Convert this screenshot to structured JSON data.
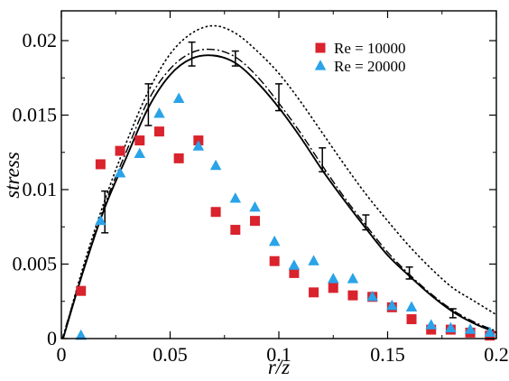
{
  "chart_data": {
    "type": "scatter",
    "xlabel": "r/z",
    "ylabel": "stress",
    "xlim": [
      0,
      0.2
    ],
    "ylim": [
      0,
      0.022
    ],
    "xticks": [
      "0",
      "0.05",
      "0.1",
      "0.15",
      "0.2"
    ],
    "yticks": [
      "0",
      "0.005",
      "0.01",
      "0.015",
      "0.02"
    ],
    "grid": false,
    "legend_position": "top-right",
    "series": [
      {
        "name": "Re = 10000",
        "marker": "square",
        "color": "#d9232d",
        "points": [
          [
            0.009,
            0.0032
          ],
          [
            0.018,
            0.0117
          ],
          [
            0.027,
            0.0126
          ],
          [
            0.036,
            0.0133
          ],
          [
            0.045,
            0.0139
          ],
          [
            0.054,
            0.0121
          ],
          [
            0.063,
            0.0133
          ],
          [
            0.071,
            0.0085
          ],
          [
            0.08,
            0.0073
          ],
          [
            0.089,
            0.0079
          ],
          [
            0.098,
            0.0052
          ],
          [
            0.107,
            0.0044
          ],
          [
            0.116,
            0.0031
          ],
          [
            0.125,
            0.0034
          ],
          [
            0.134,
            0.0029
          ],
          [
            0.143,
            0.0028
          ],
          [
            0.152,
            0.0021
          ],
          [
            0.161,
            0.0013
          ],
          [
            0.17,
            0.0006
          ],
          [
            0.179,
            0.0006
          ],
          [
            0.188,
            0.0004
          ],
          [
            0.197,
            0.0002
          ]
        ]
      },
      {
        "name": "Re = 20000",
        "marker": "triangle",
        "color": "#2aa3e8",
        "points": [
          [
            0.009,
            0.0002
          ],
          [
            0.018,
            0.0079
          ],
          [
            0.027,
            0.0111
          ],
          [
            0.036,
            0.0124
          ],
          [
            0.045,
            0.0151
          ],
          [
            0.054,
            0.0161
          ],
          [
            0.063,
            0.0129
          ],
          [
            0.071,
            0.0116
          ],
          [
            0.08,
            0.0094
          ],
          [
            0.089,
            0.0088
          ],
          [
            0.098,
            0.0065
          ],
          [
            0.107,
            0.0049
          ],
          [
            0.116,
            0.0052
          ],
          [
            0.125,
            0.004
          ],
          [
            0.134,
            0.004
          ],
          [
            0.143,
            0.0028
          ],
          [
            0.152,
            0.0022
          ],
          [
            0.161,
            0.0021
          ],
          [
            0.17,
            0.0009
          ],
          [
            0.179,
            0.0007
          ],
          [
            0.188,
            0.0006
          ],
          [
            0.197,
            0.0004
          ]
        ]
      }
    ],
    "curves": [
      {
        "style": "solid-with-errorbars",
        "color": "#000000",
        "points": [
          [
            0,
            -0.0004
          ],
          [
            0.01,
            0.0045
          ],
          [
            0.02,
            0.0088
          ],
          [
            0.03,
            0.0122
          ],
          [
            0.04,
            0.0155
          ],
          [
            0.05,
            0.0177
          ],
          [
            0.06,
            0.0188
          ],
          [
            0.07,
            0.019
          ],
          [
            0.08,
            0.0185
          ],
          [
            0.09,
            0.0172
          ],
          [
            0.1,
            0.0155
          ],
          [
            0.11,
            0.0135
          ],
          [
            0.12,
            0.0113
          ],
          [
            0.13,
            0.0093
          ],
          [
            0.14,
            0.0074
          ],
          [
            0.15,
            0.0056
          ],
          [
            0.16,
            0.0042
          ],
          [
            0.17,
            0.0029
          ],
          [
            0.18,
            0.0018
          ],
          [
            0.19,
            0.001
          ],
          [
            0.2,
            0.0004
          ]
        ],
        "errorbars": [
          [
            0.02,
            0.0085,
            0.0014
          ],
          [
            0.04,
            0.0157,
            0.0014
          ],
          [
            0.06,
            0.0191,
            0.0008
          ],
          [
            0.08,
            0.0188,
            0.0005
          ],
          [
            0.1,
            0.0162,
            0.0009
          ],
          [
            0.12,
            0.012,
            0.0008
          ],
          [
            0.14,
            0.0078,
            0.0005
          ],
          [
            0.16,
            0.0044,
            0.0004
          ],
          [
            0.18,
            0.0017,
            0.0003
          ]
        ]
      },
      {
        "style": "dashdot",
        "color": "#000000",
        "points": [
          [
            0,
            -0.0002
          ],
          [
            0.01,
            0.0046
          ],
          [
            0.02,
            0.009
          ],
          [
            0.03,
            0.0126
          ],
          [
            0.04,
            0.016
          ],
          [
            0.05,
            0.0181
          ],
          [
            0.06,
            0.0192
          ],
          [
            0.07,
            0.0194
          ],
          [
            0.08,
            0.0189
          ],
          [
            0.09,
            0.0176
          ],
          [
            0.1,
            0.0158
          ],
          [
            0.11,
            0.0138
          ],
          [
            0.12,
            0.0116
          ],
          [
            0.13,
            0.0095
          ],
          [
            0.14,
            0.0076
          ],
          [
            0.15,
            0.0058
          ],
          [
            0.16,
            0.0043
          ],
          [
            0.17,
            0.003
          ],
          [
            0.18,
            0.0019
          ],
          [
            0.19,
            0.0011
          ],
          [
            0.2,
            0.0005
          ]
        ]
      },
      {
        "style": "dotted",
        "color": "#000000",
        "points": [
          [
            0,
            -0.0004
          ],
          [
            0.01,
            0.0048
          ],
          [
            0.02,
            0.0093
          ],
          [
            0.03,
            0.0132
          ],
          [
            0.04,
            0.0166
          ],
          [
            0.05,
            0.0191
          ],
          [
            0.06,
            0.0205
          ],
          [
            0.07,
            0.021
          ],
          [
            0.08,
            0.0205
          ],
          [
            0.09,
            0.0193
          ],
          [
            0.1,
            0.0178
          ],
          [
            0.11,
            0.0159
          ],
          [
            0.12,
            0.0138
          ],
          [
            0.13,
            0.0117
          ],
          [
            0.14,
            0.0097
          ],
          [
            0.15,
            0.0079
          ],
          [
            0.16,
            0.0062
          ],
          [
            0.17,
            0.0047
          ],
          [
            0.18,
            0.0034
          ],
          [
            0.19,
            0.0025
          ],
          [
            0.2,
            0.0016
          ]
        ]
      }
    ]
  }
}
